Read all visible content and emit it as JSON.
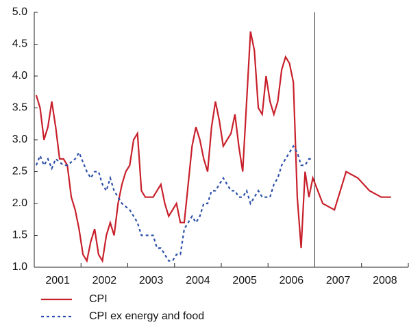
{
  "chart_data": {
    "type": "line",
    "year_labels": [
      "2001",
      "2002",
      "2003",
      "2004",
      "2005",
      "2006",
      "2007",
      "2008"
    ],
    "xlim": [
      2001,
      2009
    ],
    "xticks": [
      2001,
      2002,
      2003,
      2004,
      2005,
      2006,
      2007,
      2008,
      2009
    ],
    "vline": 2007,
    "ylim": [
      1.0,
      5.0
    ],
    "yticks": [
      {
        "value": 1.0,
        "label": "1.0"
      },
      {
        "value": 1.5,
        "label": "1.5"
      },
      {
        "value": 2.0,
        "label": "2.0"
      },
      {
        "value": 2.5,
        "label": "2.5"
      },
      {
        "value": 3.0,
        "label": "3.0"
      },
      {
        "value": 3.5,
        "label": "3.5"
      },
      {
        "value": 4.0,
        "label": "4.0"
      },
      {
        "value": 4.5,
        "label": "4.5"
      },
      {
        "value": 5.0,
        "label": "5.0"
      }
    ],
    "series": [
      {
        "name": "CPI",
        "color": "#c8202b",
        "style": "solid",
        "x": [
          2001.042,
          2001.125,
          2001.208,
          2001.292,
          2001.375,
          2001.458,
          2001.542,
          2001.625,
          2001.708,
          2001.792,
          2001.875,
          2001.958,
          2002.042,
          2002.125,
          2002.208,
          2002.292,
          2002.375,
          2002.458,
          2002.542,
          2002.625,
          2002.708,
          2002.792,
          2002.875,
          2002.958,
          2003.042,
          2003.125,
          2003.208,
          2003.292,
          2003.375,
          2003.458,
          2003.542,
          2003.625,
          2003.708,
          2003.792,
          2003.875,
          2003.958,
          2004.042,
          2004.125,
          2004.208,
          2004.292,
          2004.375,
          2004.458,
          2004.542,
          2004.625,
          2004.708,
          2004.792,
          2004.875,
          2004.958,
          2005.042,
          2005.125,
          2005.208,
          2005.292,
          2005.375,
          2005.458,
          2005.542,
          2005.625,
          2005.708,
          2005.792,
          2005.875,
          2005.958,
          2006.042,
          2006.125,
          2006.208,
          2006.292,
          2006.375,
          2006.458,
          2006.542,
          2006.625,
          2006.708,
          2006.792,
          2006.875,
          2006.958,
          2007.17,
          2007.42,
          2007.67,
          2007.92,
          2008.17,
          2008.42,
          2008.63
        ],
        "values": [
          3.7,
          3.5,
          3.0,
          3.2,
          3.6,
          3.2,
          2.7,
          2.7,
          2.6,
          2.1,
          1.9,
          1.6,
          1.2,
          1.1,
          1.4,
          1.6,
          1.2,
          1.1,
          1.5,
          1.7,
          1.5,
          2.0,
          2.3,
          2.5,
          2.6,
          3.0,
          3.1,
          2.2,
          2.1,
          2.1,
          2.1,
          2.2,
          2.3,
          2.0,
          1.8,
          1.9,
          2.0,
          1.7,
          1.7,
          2.3,
          2.9,
          3.2,
          3.0,
          2.7,
          2.5,
          3.2,
          3.6,
          3.3,
          2.9,
          3.0,
          3.1,
          3.4,
          2.9,
          2.5,
          3.6,
          4.7,
          4.4,
          3.5,
          3.4,
          4.0,
          3.6,
          3.4,
          3.6,
          4.1,
          4.3,
          4.2,
          3.9,
          2.1,
          1.3,
          2.5,
          2.1,
          2.4,
          2.0,
          1.9,
          2.5,
          2.4,
          2.2,
          2.1,
          2.1
        ]
      },
      {
        "name": "CPI ex energy and food",
        "color": "#2b4fa8",
        "style": "dotted",
        "x": [
          2001.042,
          2001.125,
          2001.208,
          2001.292,
          2001.375,
          2001.458,
          2001.542,
          2001.625,
          2001.708,
          2001.792,
          2001.875,
          2001.958,
          2002.042,
          2002.125,
          2002.208,
          2002.292,
          2002.375,
          2002.458,
          2002.542,
          2002.625,
          2002.708,
          2002.792,
          2002.875,
          2002.958,
          2003.042,
          2003.125,
          2003.208,
          2003.292,
          2003.375,
          2003.458,
          2003.542,
          2003.625,
          2003.708,
          2003.792,
          2003.875,
          2003.958,
          2004.042,
          2004.125,
          2004.208,
          2004.292,
          2004.375,
          2004.458,
          2004.542,
          2004.625,
          2004.708,
          2004.792,
          2004.875,
          2004.958,
          2005.042,
          2005.125,
          2005.208,
          2005.292,
          2005.375,
          2005.458,
          2005.542,
          2005.625,
          2005.708,
          2005.792,
          2005.875,
          2005.958,
          2006.042,
          2006.125,
          2006.208,
          2006.292,
          2006.375,
          2006.458,
          2006.542,
          2006.625,
          2006.708,
          2006.792,
          2006.875,
          2006.958
        ],
        "values": [
          2.6,
          2.75,
          2.6,
          2.7,
          2.55,
          2.7,
          2.65,
          2.6,
          2.6,
          2.65,
          2.7,
          2.8,
          2.65,
          2.5,
          2.4,
          2.5,
          2.5,
          2.3,
          2.2,
          2.4,
          2.2,
          2.1,
          2.0,
          1.95,
          1.9,
          1.8,
          1.7,
          1.5,
          1.5,
          1.5,
          1.5,
          1.3,
          1.3,
          1.2,
          1.1,
          1.1,
          1.2,
          1.2,
          1.6,
          1.7,
          1.8,
          1.7,
          1.8,
          2.0,
          2.0,
          2.2,
          2.2,
          2.3,
          2.4,
          2.3,
          2.2,
          2.2,
          2.1,
          2.1,
          2.2,
          2.0,
          2.1,
          2.2,
          2.1,
          2.1,
          2.1,
          2.3,
          2.4,
          2.6,
          2.7,
          2.8,
          2.9,
          2.8,
          2.6,
          2.6,
          2.7,
          2.7
        ]
      }
    ]
  }
}
